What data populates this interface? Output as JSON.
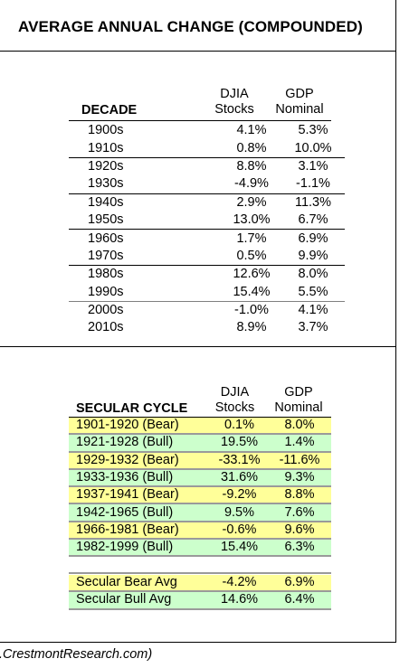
{
  "title": "AVERAGE ANNUAL CHANGE  (COMPOUNDED)",
  "decades": {
    "col1_header": "DECADE",
    "col2_header_line1": "DJIA",
    "col2_header_line2": "Stocks",
    "col3_header_line1": "GDP",
    "col3_header_line2": "Nominal",
    "rows": [
      {
        "label": "1900s",
        "djia": "4.1%",
        "gdp": "5.3%"
      },
      {
        "label": "1910s",
        "djia": "0.8%",
        "gdp": "10.0%"
      },
      {
        "label": "1920s",
        "djia": "8.8%",
        "gdp": "3.1%"
      },
      {
        "label": "1930s",
        "djia": "-4.9%",
        "gdp": "-1.1%"
      },
      {
        "label": "1940s",
        "djia": "2.9%",
        "gdp": "11.3%"
      },
      {
        "label": "1950s",
        "djia": "13.0%",
        "gdp": "6.7%"
      },
      {
        "label": "1960s",
        "djia": "1.7%",
        "gdp": "6.9%"
      },
      {
        "label": "1970s",
        "djia": "0.5%",
        "gdp": "9.9%"
      },
      {
        "label": "1980s",
        "djia": "12.6%",
        "gdp": "8.0%"
      },
      {
        "label": "1990s",
        "djia": "15.4%",
        "gdp": "5.5%"
      },
      {
        "label": "2000s",
        "djia": "-1.0%",
        "gdp": "4.1%"
      },
      {
        "label": "2010s",
        "djia": "8.9%",
        "gdp": "3.7%"
      }
    ]
  },
  "secular": {
    "col1_header": "SECULAR CYCLE",
    "col2_header_line1": "DJIA",
    "col2_header_line2": "Stocks",
    "col3_header_line1": "GDP",
    "col3_header_line2": "Nominal",
    "rows": [
      {
        "label": "1901-1920  (Bear)",
        "djia": "0.1%",
        "gdp": "8.0%",
        "kind": "bear"
      },
      {
        "label": "1921-1928  (Bull)",
        "djia": "19.5%",
        "gdp": "1.4%",
        "kind": "bull"
      },
      {
        "label": "1929-1932  (Bear)",
        "djia": "-33.1%",
        "gdp": "-11.6%",
        "kind": "bear"
      },
      {
        "label": "1933-1936  (Bull)",
        "djia": "31.6%",
        "gdp": "9.3%",
        "kind": "bull"
      },
      {
        "label": "1937-1941  (Bear)",
        "djia": "-9.2%",
        "gdp": "8.8%",
        "kind": "bear"
      },
      {
        "label": "1942-1965  (Bull)",
        "djia": "9.5%",
        "gdp": "7.6%",
        "kind": "bull"
      },
      {
        "label": "1966-1981  (Bear)",
        "djia": "-0.6%",
        "gdp": "9.6%",
        "kind": "bear"
      },
      {
        "label": "1982-1999  (Bull)",
        "djia": "15.4%",
        "gdp": "6.3%",
        "kind": "bull"
      }
    ],
    "averages": [
      {
        "label": "Secular Bear Avg",
        "djia": "-4.2%",
        "gdp": "6.9%",
        "kind": "bear"
      },
      {
        "label": "Secular Bull Avg",
        "djia": "14.6%",
        "gdp": "6.4%",
        "kind": "bull"
      }
    ]
  },
  "colors": {
    "bear": "#ffff99",
    "bull": "#ccffcc"
  },
  "footer": ".CrestmontResearch.com)"
}
